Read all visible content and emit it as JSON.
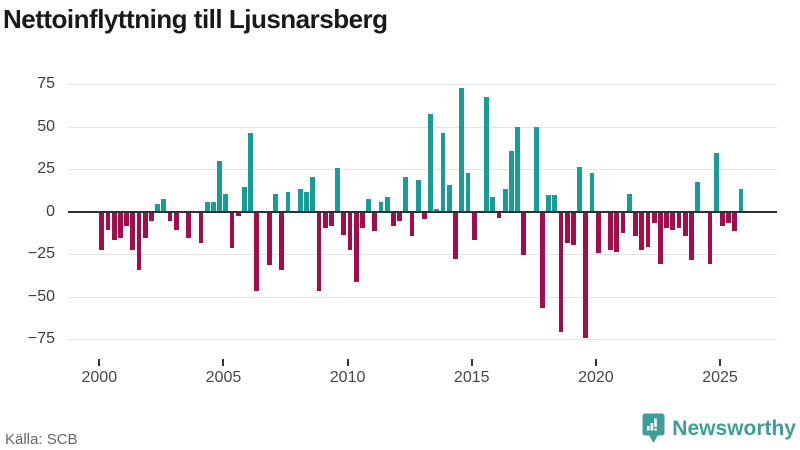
{
  "chart_data": {
    "type": "bar",
    "title": "Nettoinflyttning till Ljusnarsberg",
    "frequency": "quarterly",
    "start_period": "2000 Q1",
    "end_period": "2025 Q4",
    "ylim": [
      -80,
      80
    ],
    "grid": true,
    "positive_color": "#169d96",
    "negative_color": "#a50c49",
    "y_ticks": [
      {
        "v": 75,
        "label": "75"
      },
      {
        "v": 50,
        "label": "50"
      },
      {
        "v": 25,
        "label": "25"
      },
      {
        "v": 0,
        "label": "0"
      },
      {
        "v": -25,
        "label": "−25"
      },
      {
        "v": -50,
        "label": "−50"
      },
      {
        "v": -75,
        "label": "−75"
      }
    ],
    "x_tick_years": [
      2000,
      2005,
      2010,
      2015,
      2020,
      2025
    ],
    "values": [
      -22,
      -10,
      -16,
      -15,
      -8,
      -22,
      -34,
      -15,
      -5,
      4,
      7,
      -5,
      -10,
      0,
      -15,
      0,
      -18,
      5,
      5,
      29,
      10,
      -21,
      -2,
      14,
      46,
      -46,
      0,
      -31,
      10,
      -34,
      11,
      0,
      13,
      11,
      20,
      -46,
      -9,
      -8,
      25,
      -13,
      -22,
      -41,
      -9,
      7,
      -11,
      5,
      8,
      -8,
      -5,
      20,
      -14,
      18,
      -4,
      57,
      1,
      46,
      15,
      -27,
      72,
      22,
      -16,
      0,
      67,
      8,
      -3,
      13,
      35,
      49,
      -25,
      0,
      49,
      -56,
      9,
      9,
      -70,
      -18,
      -19,
      26,
      -74,
      22,
      -24,
      0,
      -22,
      -23,
      -12,
      10,
      -14,
      -22,
      -20,
      -6,
      -30,
      -9,
      -10,
      -9,
      -14,
      -28,
      17,
      0,
      -30,
      34,
      -8,
      -6,
      -11,
      13
    ]
  },
  "footer": {
    "source": "Källa: SCB",
    "brand": "Newsworthy"
  }
}
